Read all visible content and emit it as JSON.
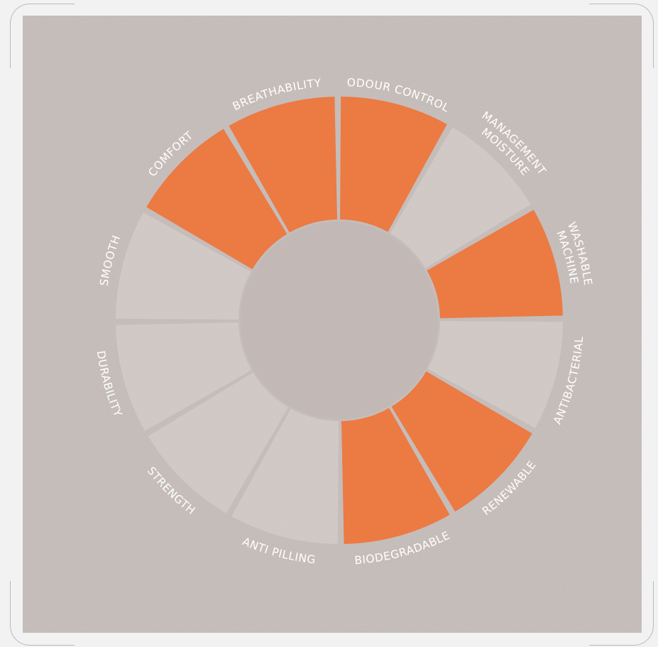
{
  "diagram": {
    "segments": [
      {
        "lines": [
          "ODOUR CONTROL"
        ],
        "highlighted": true
      },
      {
        "lines": [
          "MOISTURE",
          "MANAGEMENT"
        ],
        "highlighted": false
      },
      {
        "lines": [
          "MACHINE",
          "WASHABLE"
        ],
        "highlighted": true
      },
      {
        "lines": [
          "ANTIBACTERIAL"
        ],
        "highlighted": false
      },
      {
        "lines": [
          "RENEWABLE"
        ],
        "highlighted": true
      },
      {
        "lines": [
          "BIODEGRADABLE"
        ],
        "highlighted": true
      },
      {
        "lines": [
          "ANTI PILLING"
        ],
        "highlighted": false
      },
      {
        "lines": [
          "STRENGTH"
        ],
        "highlighted": false
      },
      {
        "lines": [
          "DURABILITY"
        ],
        "highlighted": false
      },
      {
        "lines": [
          "SMOOTH"
        ],
        "highlighted": false
      },
      {
        "lines": [
          "COMFORT"
        ],
        "highlighted": true
      },
      {
        "lines": [
          "BREATHABILITY"
        ],
        "highlighted": true
      }
    ],
    "colors": {
      "highlight": "#ec7a43",
      "inactive": "#d6cdca",
      "background": "#c6bdba",
      "hub": "#c2b8b5",
      "label": "#ffffff"
    }
  }
}
